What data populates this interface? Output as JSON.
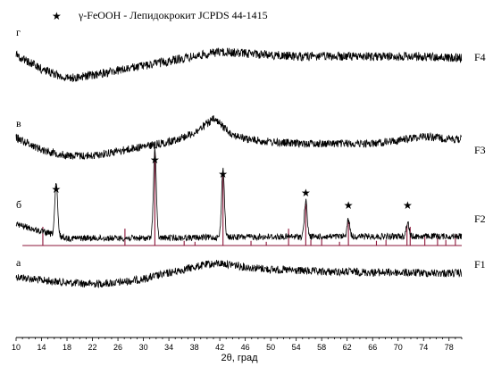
{
  "chart_data": {
    "type": "line",
    "xlabel": "2θ, град",
    "xlim": [
      10,
      80
    ],
    "xticks": [
      10,
      14,
      18,
      22,
      26,
      30,
      34,
      38,
      42,
      46,
      50,
      54,
      58,
      62,
      66,
      70,
      74,
      78
    ],
    "legend": {
      "marker": "★",
      "text": "γ-FeOOH - Лепидокрокит JCPDS 44-1415",
      "placement": "top"
    },
    "series": [
      {
        "name": "F1",
        "panel": "а",
        "x": [
          10,
          14,
          18,
          22,
          26,
          30,
          34,
          38,
          40,
          42,
          44,
          46,
          50,
          54,
          58,
          62,
          66,
          70,
          74,
          78,
          80
        ],
        "y": [
          9,
          6,
          4,
          3,
          4,
          7,
          12,
          17,
          19,
          20,
          19,
          17,
          15,
          14,
          13,
          13,
          12.5,
          12.5,
          12,
          12,
          12
        ]
      },
      {
        "name": "F2",
        "panel": "б",
        "x": [
          10,
          14,
          16.3,
          18,
          22,
          26,
          30,
          31.8,
          34,
          38,
          42,
          42.5,
          46,
          50,
          54,
          55.5,
          58,
          62,
          62.2,
          66,
          70,
          71.5,
          74,
          78,
          80
        ],
        "y": [
          20,
          14,
          60,
          5,
          4,
          4.5,
          5,
          100,
          6,
          6,
          7,
          80,
          7,
          6.5,
          6.5,
          45,
          6.5,
          6.5,
          25,
          6,
          6,
          22,
          6.5,
          7,
          7
        ]
      },
      {
        "name": "F3",
        "panel": "в",
        "x": [
          10,
          14,
          18,
          22,
          26,
          30,
          34,
          38,
          40,
          41,
          42,
          44,
          46,
          50,
          54,
          58,
          62,
          66,
          70,
          74,
          76,
          78,
          80
        ],
        "y": [
          20,
          12,
          8,
          8,
          11,
          14,
          17,
          23,
          29,
          32,
          29,
          22,
          19,
          17,
          16,
          16,
          16,
          16,
          18,
          21,
          20,
          19,
          19
        ]
      },
      {
        "name": "F4",
        "panel": "г",
        "x": [
          10,
          14,
          18,
          22,
          26,
          30,
          34,
          38,
          42,
          46,
          50,
          54,
          58,
          62,
          66,
          70,
          74,
          78,
          80
        ],
        "y": [
          22,
          13,
          7,
          9,
          12,
          15,
          18,
          21,
          24,
          23,
          22,
          21,
          21,
          21,
          21,
          21,
          21,
          20,
          20
        ]
      }
    ],
    "peak_markers_series": "F2",
    "peak_markers_x": [
      16.3,
      31.8,
      42.5,
      55.5,
      62.2,
      71.5
    ],
    "reference_sticks": {
      "name": "γ-FeOOH JCPDS 44-1415",
      "color": "#8b1538",
      "x": [
        14.2,
        27.1,
        31.8,
        36.4,
        38.1,
        42.5,
        46.9,
        49.3,
        52.8,
        55.5,
        56.3,
        58.0,
        60.8,
        62.2,
        66.6,
        68.1,
        71.4,
        71.9,
        74.2,
        76.2,
        77.5,
        79.0
      ],
      "y": [
        20,
        18,
        100,
        5,
        4,
        80,
        5,
        4,
        18,
        45,
        6,
        8,
        4,
        25,
        5,
        6,
        22,
        20,
        10,
        8,
        6,
        12
      ]
    },
    "grid": false
  }
}
